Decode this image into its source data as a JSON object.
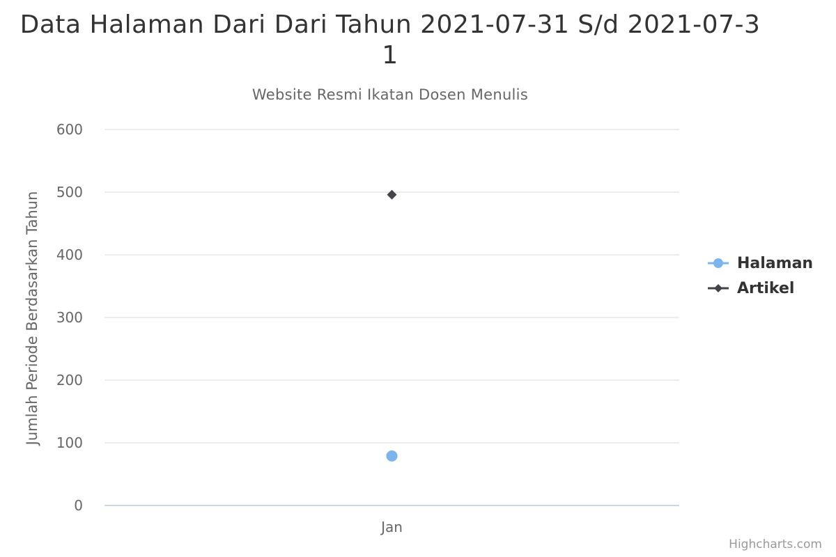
{
  "chart_data": {
    "type": "scatter",
    "title": "Data Halaman Dari Dari Tahun 2021-07-31 S/d 2021-07-31",
    "subtitle": "Website Resmi Ikatan Dosen Menulis",
    "xlabel": "",
    "ylabel": "Jumlah Periode Berdasarkan Tahun",
    "categories": [
      "Jan"
    ],
    "ylim": [
      0,
      600
    ],
    "yticks": [
      0,
      100,
      200,
      300,
      400,
      500,
      600
    ],
    "grid": true,
    "legend_position": "right",
    "series": [
      {
        "name": "Halaman",
        "values": [
          79
        ],
        "color": "#7cb5ec",
        "marker": "circle"
      },
      {
        "name": "Artikel",
        "values": [
          496
        ],
        "color": "#434348",
        "marker": "diamond"
      }
    ]
  },
  "credits": "Highcharts.com"
}
